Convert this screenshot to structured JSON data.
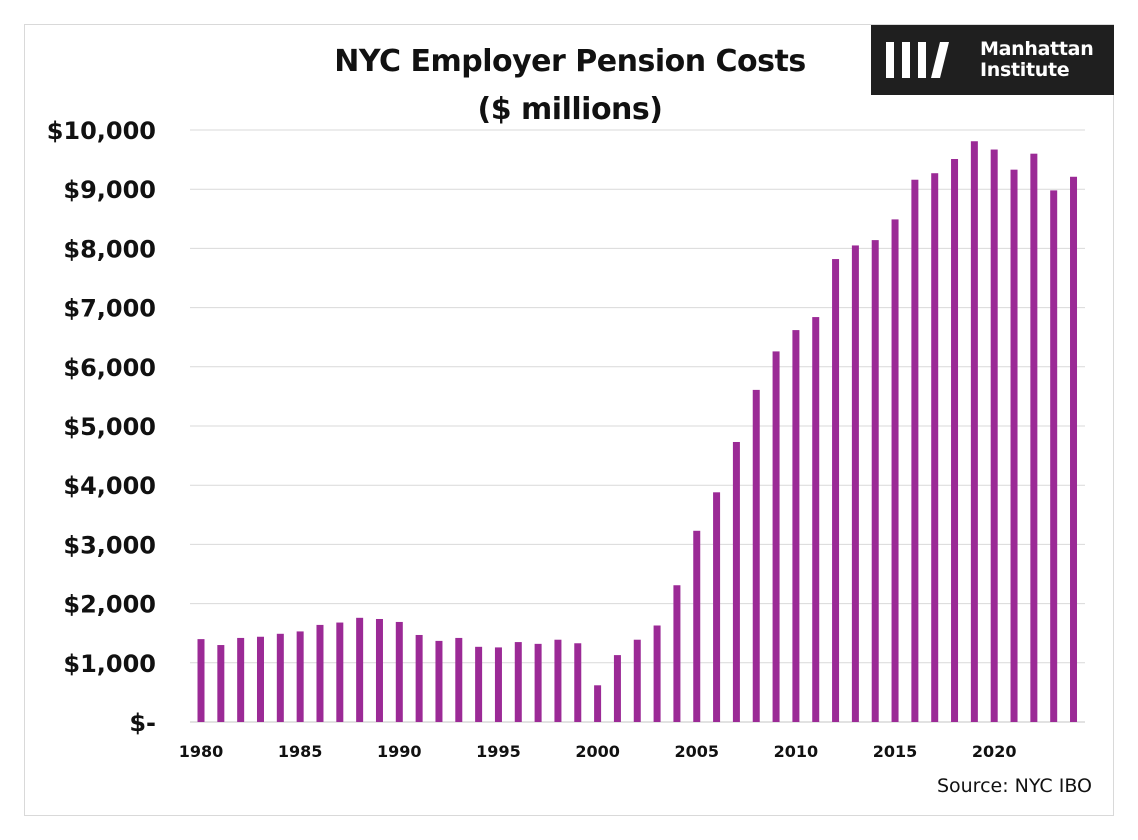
{
  "title_line1": "NYC Employer Pension Costs",
  "title_line2": "($ millions)",
  "logo": {
    "text_line1": "Manhattan",
    "text_line2": "Institute",
    "icon": "manhattan-institute-slash-mark"
  },
  "source": "Source: NYC IBO",
  "colors": {
    "bar": "#9b2a96",
    "grid": "#d9d9d9",
    "logo_bg": "#1f1f1f"
  },
  "chart_data": {
    "type": "bar",
    "title": "NYC Employer Pension Costs ($ millions)",
    "xlabel": "",
    "ylabel": "",
    "ylim": [
      0,
      10000
    ],
    "grid": true,
    "y_tick_values": [
      0,
      1000,
      2000,
      3000,
      4000,
      5000,
      6000,
      7000,
      8000,
      9000,
      10000
    ],
    "y_tick_labels": [
      "$-",
      "$1,000",
      "$2,000",
      "$3,000",
      "$4,000",
      "$5,000",
      "$6,000",
      "$7,000",
      "$8,000",
      "$9,000",
      "$10,000"
    ],
    "x_tick_labels": [
      "1980",
      "1985",
      "1990",
      "1995",
      "2000",
      "2005",
      "2010",
      "2015",
      "2020"
    ],
    "categories": [
      1980,
      1981,
      1982,
      1983,
      1984,
      1985,
      1986,
      1987,
      1988,
      1989,
      1990,
      1991,
      1992,
      1993,
      1994,
      1995,
      1996,
      1997,
      1998,
      1999,
      2000,
      2001,
      2002,
      2003,
      2004,
      2005,
      2006,
      2007,
      2008,
      2009,
      2010,
      2011,
      2012,
      2013,
      2014,
      2015,
      2016,
      2017,
      2018,
      2019,
      2020,
      2021,
      2022,
      2023,
      2024
    ],
    "values": [
      1400,
      1300,
      1420,
      1440,
      1490,
      1530,
      1640,
      1680,
      1760,
      1740,
      1690,
      1470,
      1370,
      1420,
      1270,
      1260,
      1350,
      1320,
      1390,
      1330,
      620,
      1130,
      1390,
      1630,
      2310,
      3230,
      3880,
      4730,
      5610,
      6260,
      6620,
      6840,
      7820,
      8050,
      8140,
      8490,
      9160,
      9270,
      9510,
      9810,
      9670,
      9330,
      9600,
      8980,
      9210
    ]
  }
}
